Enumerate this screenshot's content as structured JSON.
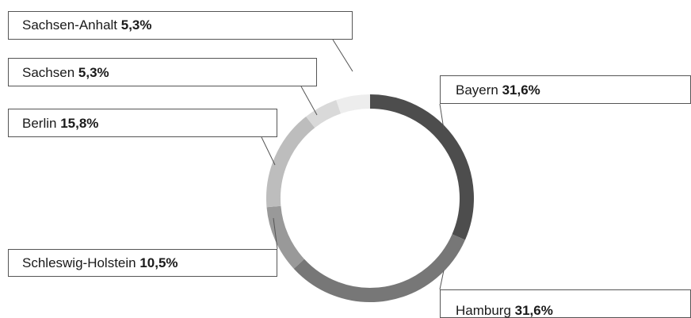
{
  "chart_data": {
    "type": "pie",
    "variant": "donut",
    "title": "",
    "slices": [
      {
        "name": "Bayern",
        "value": 31.6,
        "label": "31,6%",
        "color": "#4d4d4d"
      },
      {
        "name": "Hamburg",
        "value": 31.6,
        "label": "31,6%",
        "color": "#777777"
      },
      {
        "name": "Schleswig-Holstein",
        "value": 10.5,
        "label": "10,5%",
        "color": "#999999"
      },
      {
        "name": "Berlin",
        "value": 15.8,
        "label": "15,8%",
        "color": "#bdbdbd"
      },
      {
        "name": "Sachsen",
        "value": 5.3,
        "label": "5,3%",
        "color": "#d9d9d9"
      },
      {
        "name": "Sachsen-Anhalt",
        "value": 5.3,
        "label": "5,3%",
        "color": "#ededed"
      }
    ]
  }
}
